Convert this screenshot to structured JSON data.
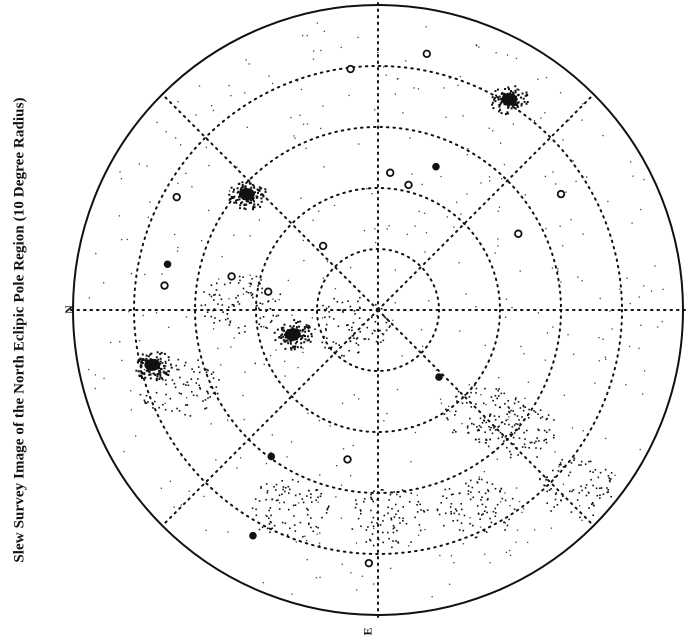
{
  "title": "Slew Survey Image of the North Eclipic Pole Region  (10 Degree Radius)",
  "labels": {
    "north": "N",
    "east": "E"
  },
  "colors": {
    "ink": "#111111",
    "background": "#ffffff"
  },
  "chart_data": {
    "type": "scatter",
    "title": "Slew Survey Image of the North Eclipic Pole Region  (10 Degree Radius)",
    "xlabel": "",
    "ylabel": "",
    "grid": "polar dotted rings at 2-degree steps with radial spokes every 45 degrees",
    "legend": "none",
    "series": [
      {
        "kind": "open-circle",
        "values": [
          {
            "x": -0.9,
            "y": 7.9
          },
          {
            "x": 1.6,
            "y": 8.4
          },
          {
            "x": 0.4,
            "y": 4.5
          },
          {
            "x": 1.0,
            "y": 4.1
          },
          {
            "x": 6.0,
            "y": 3.8
          },
          {
            "x": 4.6,
            "y": 2.5
          },
          {
            "x": -1.8,
            "y": 2.1
          },
          {
            "x": -6.6,
            "y": 3.7
          },
          {
            "x": -4.8,
            "y": 1.1
          },
          {
            "x": -7.0,
            "y": 0.8
          },
          {
            "x": -3.6,
            "y": 0.6
          },
          {
            "x": -1.0,
            "y": -4.9
          },
          {
            "x": -0.3,
            "y": -8.3
          }
        ]
      },
      {
        "kind": "filled-dot",
        "values": [
          {
            "x": 1.9,
            "y": 4.7
          },
          {
            "x": -6.9,
            "y": 1.5
          },
          {
            "x": 2.0,
            "y": -2.2
          },
          {
            "x": -3.5,
            "y": -4.8
          },
          {
            "x": -4.1,
            "y": -7.4
          }
        ]
      },
      {
        "kind": "bright-source",
        "values": [
          {
            "x": 4.3,
            "y": 6.9
          },
          {
            "x": -4.3,
            "y": 3.8
          },
          {
            "x": -2.8,
            "y": -0.8
          },
          {
            "x": -7.4,
            "y": -1.8
          }
        ]
      }
    ],
    "diffuse_regions": [
      {
        "x": -3.0,
        "y": -6.5
      },
      {
        "x": 0.3,
        "y": -6.8
      },
      {
        "x": 3.2,
        "y": -6.5
      },
      {
        "x": 4.5,
        "y": -4.0
      },
      {
        "x": 6.5,
        "y": -5.8
      },
      {
        "x": -6.5,
        "y": -2.5
      },
      {
        "x": -4.5,
        "y": 0.2
      },
      {
        "x": -1.0,
        "y": -0.5
      },
      {
        "x": 3.5,
        "y": -3.4
      }
    ],
    "radius_deg": 10,
    "rings_deg": [
      2,
      4,
      6,
      8
    ]
  }
}
